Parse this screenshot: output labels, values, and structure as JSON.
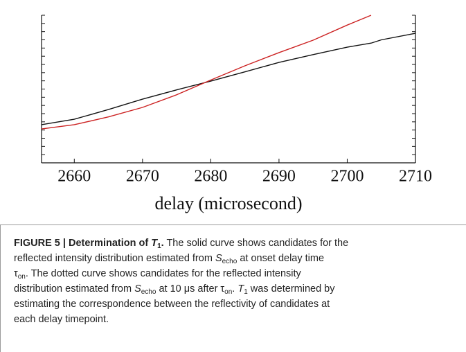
{
  "chart_data": {
    "type": "line",
    "x_label": "delay (microsecond)",
    "x": [
      2655.2,
      2660,
      2665,
      2670,
      2675,
      2680,
      2685,
      2690,
      2695,
      2700,
      2703.5,
      2705,
      2710
    ],
    "series": [
      {
        "color": "#111111",
        "values": [
          4.65,
          5.32,
          6.5,
          7.77,
          8.9,
          9.97,
          11.1,
          12.25,
          13.2,
          14.11,
          14.6,
          15.0,
          15.8
        ]
      },
      {
        "color": "#cc2222",
        "values": [
          4.14,
          4.65,
          5.6,
          6.76,
          8.3,
          10.1,
          11.83,
          13.44,
          14.96,
          16.8,
          18.0,
          null,
          null
        ]
      }
    ],
    "xlim": [
      2655.2,
      2710
    ],
    "xticks": [
      2660,
      2670,
      2680,
      2690,
      2700,
      2710
    ],
    "ylim": [
      0,
      18
    ],
    "yticks": [
      0,
      1,
      2,
      3,
      4,
      5,
      6,
      7,
      8,
      9,
      10,
      11,
      12,
      13,
      14,
      15,
      16,
      17,
      18
    ]
  },
  "caption": [
    [
      "FIGURE 5 | Determination of ",
      "T",
      "1",
      ".",
      " The solid curve shows candidates for the"
    ],
    [
      "reflected intensity distribution estimated from ",
      "S",
      "echo",
      " at onset delay time"
    ],
    [
      "τ",
      "on",
      ". The dotted curve shows candidates for the reflected intensity"
    ],
    [
      "distribution estimated from ",
      "S",
      "echo",
      " at 10 μs after τ",
      "on",
      ". ",
      "T",
      "1",
      " was determined by"
    ],
    [
      "estimating the correspondence between the reflectivity of candidates at"
    ],
    [
      "each delay timepoint."
    ]
  ]
}
